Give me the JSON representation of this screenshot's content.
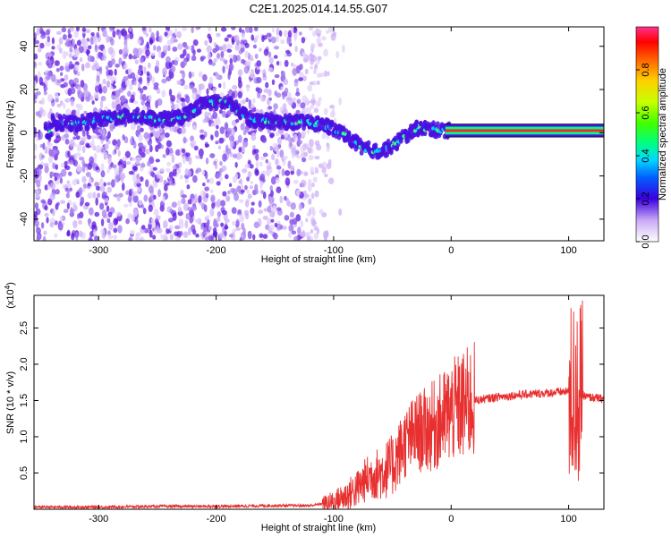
{
  "title": "C2E1.2025.014.14.55.G07",
  "chart_data": [
    {
      "type": "heatmap",
      "xlabel": "Height of straight line (km)",
      "ylabel": "Frequency (Hz)",
      "xlim": [
        -355,
        130
      ],
      "ylim": [
        -50,
        49
      ],
      "xticks": [
        -300,
        -200,
        -100,
        0,
        100
      ],
      "yticks": [
        -40,
        -20,
        0,
        20,
        40
      ],
      "colorbar": {
        "label": "Normalized spectral amplitude",
        "range": [
          0,
          1
        ],
        "ticks": [
          0.0,
          0.2,
          0.4,
          0.6,
          0.8
        ]
      },
      "ridge": {
        "x": [
          -340,
          -320,
          -300,
          -270,
          -250,
          -230,
          -210,
          -190,
          -170,
          -150,
          -130,
          -110,
          -90,
          -75,
          -60,
          -50,
          -40,
          -30,
          -20,
          -10,
          0,
          20,
          50,
          80,
          100,
          110,
          130
        ],
        "y": [
          5,
          4,
          6,
          8,
          6,
          7,
          14,
          14,
          6,
          5,
          5,
          4,
          -1,
          -7,
          -9,
          -6,
          -2,
          2,
          2,
          1,
          1,
          1,
          1,
          1,
          1,
          1,
          1
        ]
      }
    },
    {
      "type": "line",
      "xlabel": "Height of straight line (km)",
      "ylabel": "SNR (10 * v/v)",
      "y_multiplier": "(x10",
      "y_multiplier_exp": "4",
      "xlim": [
        -355,
        130
      ],
      "ylim": [
        0,
        2.95
      ],
      "xticks": [
        -300,
        -200,
        -100,
        0,
        100
      ],
      "yticks": [
        0.5,
        1.0,
        1.5,
        2.0,
        2.5
      ],
      "ytick_labels": [
        "0.5",
        "1.0",
        "1.5",
        "2.0",
        "2.5"
      ],
      "series": [
        {
          "color": "#e83030",
          "x": [
            -355,
            -300,
            -250,
            -200,
            -150,
            -120,
            -100,
            -90,
            -80,
            -70,
            -60,
            -50,
            -40,
            -30,
            -20,
            -10,
            0,
            10,
            20,
            40,
            60,
            80,
            95,
            100,
            105,
            110,
            115,
            120,
            130
          ],
          "y": [
            0.03,
            0.03,
            0.04,
            0.04,
            0.05,
            0.05,
            0.1,
            0.18,
            0.28,
            0.45,
            0.5,
            0.6,
            0.9,
            1.05,
            1.1,
            1.2,
            1.35,
            1.42,
            1.5,
            1.55,
            1.58,
            1.6,
            1.62,
            1.62,
            1.55,
            1.6,
            1.55,
            1.54,
            1.52
          ]
        }
      ]
    }
  ]
}
